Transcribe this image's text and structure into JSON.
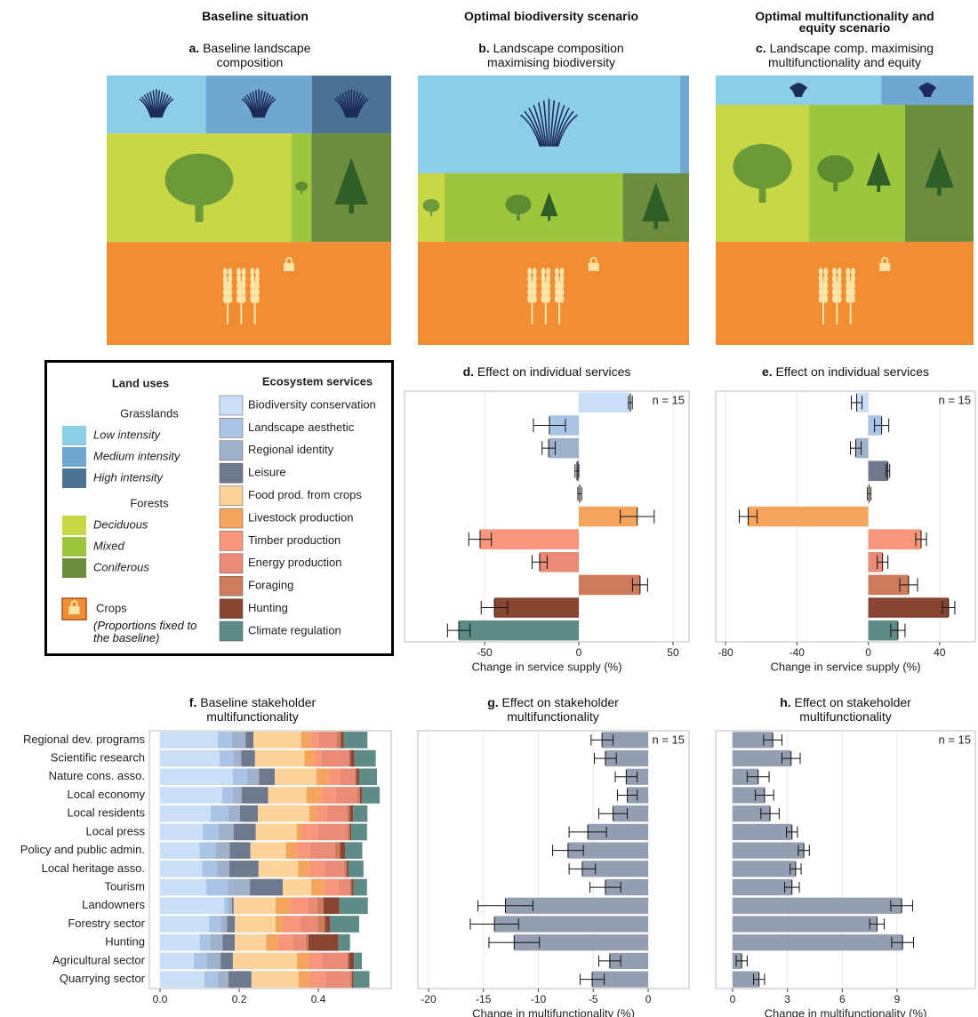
{
  "headers": [
    "Baseline situation",
    "Optimal biodiversity scenario",
    "Optimal multifunctionality and equity scenario"
  ],
  "compositions": [
    {
      "label": "a.",
      "title": "Baseline landscape composition",
      "values": [
        7.5,
        8,
        6,
        26.2,
        2.8,
        11.3,
        38.2
      ]
    },
    {
      "label": "b.",
      "title": "Landscape composition maximising biodiversity",
      "values": [
        35.1,
        1.2,
        0,
        2.5,
        16.7,
        6.2,
        38.3
      ]
    },
    {
      "label": "c.",
      "title": "Landscape comp. maximising multifunctionality and equity",
      "values": [
        7.0,
        3.9,
        0,
        18.4,
        18.9,
        13.5,
        38.3
      ]
    }
  ],
  "legend": {
    "land_uses_title": "Land uses",
    "services_title": "Ecosystem services",
    "groups": [
      {
        "name": "Grasslands",
        "items": [
          {
            "name": "Low intensity",
            "color": "#8ccde8"
          },
          {
            "name": "Medium intensity",
            "color": "#6fa7d1"
          },
          {
            "name": "High intensity",
            "color": "#4b7294"
          }
        ]
      },
      {
        "name": "Forests",
        "items": [
          {
            "name": "Deciduous",
            "color": "#c7d746"
          },
          {
            "name": "Mixed",
            "color": "#9dc53d"
          },
          {
            "name": "Coniferous",
            "color": "#6c8d3d"
          }
        ]
      }
    ],
    "crops": {
      "name": "Crops",
      "note": "(Proportions fixed to the baseline)",
      "color": "#f18d32"
    }
  },
  "chart_data": [
    {
      "type": "bar",
      "label": "d.",
      "title": "Effect on individual services",
      "xlabel": "Change in service supply (%)",
      "values": [
        27.4,
        -15.6,
        -16,
        -1,
        0.5,
        31,
        -52.4,
        -20.8,
        32.5,
        -44.8,
        -63.7
      ],
      "errors": [
        1,
        8.5,
        3.5,
        1,
        1,
        9,
        6,
        4,
        4,
        7,
        6
      ],
      "xlim": [
        -92.5,
        58.5
      ],
      "xticks": [
        -50,
        0,
        50
      ],
      "annotation": "n = 15",
      "grid": true
    },
    {
      "type": "bar",
      "label": "e.",
      "title": "Effect on individual services",
      "xlabel": "Change in service supply (%)",
      "values": [
        -6.5,
        7.5,
        -7,
        11,
        0.5,
        -67.3,
        29.6,
        8,
        22.6,
        45,
        16.6
      ],
      "errors": [
        3,
        4,
        3,
        1,
        1,
        5,
        3,
        3,
        5,
        3.5,
        4
      ],
      "xlim": [
        -85.5,
        60
      ],
      "xticks": [
        -80,
        -40,
        0,
        40
      ],
      "annotation": "n = 15",
      "grid": true
    },
    {
      "type": "stacked_bar",
      "label": "f.",
      "title": "Baseline stakeholder multifunctionality",
      "categories": [
        "Regional dev. programs",
        "Scientific research",
        "Nature cons. asso.",
        "Local economy",
        "Local residents",
        "Local press",
        "Policy and public admin.",
        "Local heritage asso.",
        "Tourism",
        "Landowners",
        "Forestry sector",
        "Hunting",
        "Agricultural sector",
        "Quarrying sector"
      ],
      "series": [
        {
          "name": "Biodiversity conservation",
          "color": "#cadff7",
          "values": [
            0.146,
            0.15,
            0.184,
            0.157,
            0.128,
            0.108,
            0.1,
            0.106,
            0.117,
            0.162,
            0.124,
            0.1,
            0.085,
            0.112
          ]
        },
        {
          "name": "Landscape aesthetic",
          "color": "#aac4e5",
          "values": [
            0.036,
            0.035,
            0.036,
            0.027,
            0.045,
            0.04,
            0.04,
            0.038,
            0.054,
            0.011,
            0.029,
            0.027,
            0.034,
            0.034
          ]
        },
        {
          "name": "Regional identity",
          "color": "#a0b1cc",
          "values": [
            0.034,
            0.02,
            0.03,
            0.022,
            0.029,
            0.038,
            0.036,
            0.031,
            0.056,
            0.009,
            0.016,
            0.031,
            0.034,
            0.027
          ]
        },
        {
          "name": "Leisure",
          "color": "#6e798d",
          "values": [
            0.02,
            0.035,
            0.04,
            0.067,
            0.045,
            0.056,
            0.052,
            0.074,
            0.083,
            0.004,
            0.02,
            0.031,
            0.031,
            0.058
          ]
        },
        {
          "name": "Food prod. from crops",
          "color": "#fdd39b",
          "values": [
            0.12,
            0.125,
            0.105,
            0.097,
            0.13,
            0.103,
            0.09,
            0.1,
            0.072,
            0.106,
            0.103,
            0.079,
            0.162,
            0.119
          ]
        },
        {
          "name": "Livestock production",
          "color": "#f3a55d",
          "values": [
            0.025,
            0.025,
            0.03,
            0.038,
            0.016,
            0.013,
            0.027,
            0.027,
            0.034,
            0.038,
            0.018,
            0.029,
            0.029,
            0.027
          ]
        },
        {
          "name": "Timber production",
          "color": "#f8967b",
          "values": [
            0.02,
            0.016,
            0.03,
            0.036,
            0.029,
            0.04,
            0.034,
            0.04,
            0.034,
            0.045,
            0.045,
            0.04,
            0.034,
            0.04
          ]
        },
        {
          "name": "Energy production",
          "color": "#e98b77",
          "values": [
            0.045,
            0.07,
            0.036,
            0.054,
            0.05,
            0.076,
            0.063,
            0.05,
            0.029,
            0.022,
            0.043,
            0.031,
            0.063,
            0.063
          ]
        },
        {
          "name": "Foraging",
          "color": "#cd7b5d",
          "values": [
            0.011,
            0.005,
            0.005,
            0.007,
            0.007,
            0.005,
            0.013,
            0.005,
            0.005,
            0.016,
            0.018,
            0.007,
            0.005,
            0.005
          ]
        },
        {
          "name": "Hunting",
          "color": "#884632",
          "values": [
            0.007,
            0.01,
            0.007,
            0.005,
            0.009,
            0.004,
            0.013,
            0.005,
            0.005,
            0.04,
            0.013,
            0.076,
            0.013,
            0.004
          ]
        },
        {
          "name": "Climate regulation",
          "color": "#5f8b87",
          "values": [
            0.06,
            0.054,
            0.045,
            0.045,
            0.036,
            0.04,
            0.043,
            0.038,
            0.034,
            0.072,
            0.074,
            0.029,
            0.02,
            0.04
          ]
        }
      ],
      "xlim": [
        -0.027,
        0.584
      ],
      "xticks": [
        {
          "value": 0,
          "label": "0.0"
        },
        {
          "value": 0.2,
          "label": "0.2"
        },
        {
          "value": 0.4,
          "label": "0.4"
        }
      ],
      "grid": true
    },
    {
      "type": "bar",
      "label": "g.",
      "title": "Effect on stakeholder multifunctionality",
      "xlabel": "Change in multifunctionality (%)",
      "values": [
        -4.2,
        -3.9,
        -2.0,
        -1.9,
        -3.2,
        -5.5,
        -7.3,
        -6.0,
        -3.9,
        -13.0,
        -14.0,
        -12.2,
        -3.5,
        -5.1
      ],
      "errors": [
        1.0,
        1.0,
        1.0,
        0.9,
        1.3,
        1.7,
        1.4,
        1.2,
        1.4,
        2.5,
        2.2,
        2.3,
        1.0,
        1.1
      ],
      "color": "#939eb0",
      "xlim": [
        -20.97,
        3.72
      ],
      "xticks": [
        -20,
        -15,
        -10,
        -5,
        0
      ],
      "annotation": "n = 15",
      "grid": true
    },
    {
      "type": "bar",
      "label": "h.",
      "title": "Effect on stakeholder multifunctionality",
      "xlabel": "Change in multifunctionality (%)",
      "values": [
        2.2,
        3.2,
        1.4,
        1.75,
        2.05,
        3.25,
        3.9,
        3.45,
        3.25,
        9.25,
        7.9,
        9.3,
        0.5,
        1.45
      ],
      "errors": [
        0.5,
        0.5,
        0.6,
        0.5,
        0.5,
        0.3,
        0.3,
        0.3,
        0.4,
        0.6,
        0.4,
        0.6,
        0.3,
        0.3
      ],
      "color": "#939eb0",
      "xlim": [
        -0.92,
        13.28
      ],
      "xticks": [
        0,
        3,
        6,
        9
      ],
      "annotation": "n = 15",
      "grid": true
    }
  ]
}
